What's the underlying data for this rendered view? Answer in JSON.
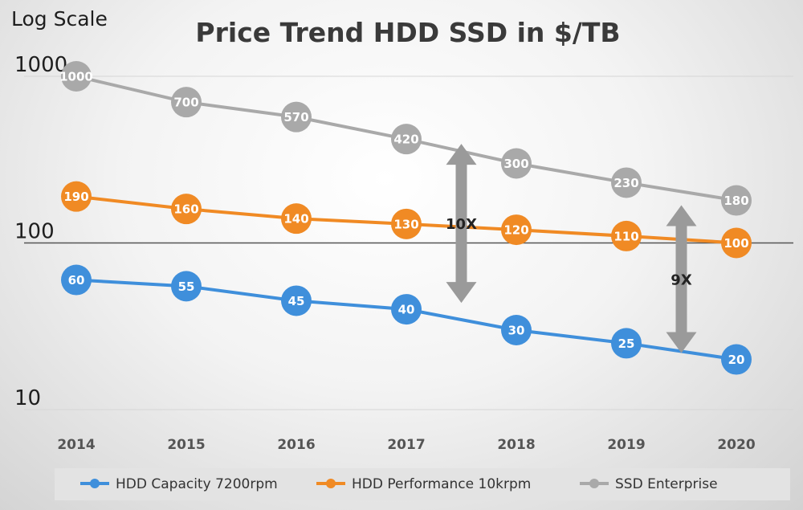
{
  "chart_data": {
    "type": "line",
    "title": "Price Trend HDD SSD in $/TB",
    "y_scale_label": "Log Scale",
    "y_scale": "log",
    "ylim": [
      10,
      1000
    ],
    "y_ticks": [
      "1000",
      "100",
      "10"
    ],
    "categories": [
      "2014",
      "2015",
      "2016",
      "2017",
      "2018",
      "2019",
      "2020"
    ],
    "grid": "horizontal",
    "legend_position": "bottom",
    "series": [
      {
        "name": "HDD Capacity 7200rpm",
        "color": "#3f8fdb",
        "values": [
          60,
          55,
          45,
          40,
          30,
          25,
          20
        ]
      },
      {
        "name": "HDD Performance 10krpm",
        "color": "#f08a24",
        "values": [
          190,
          160,
          140,
          130,
          120,
          110,
          100
        ]
      },
      {
        "name": "SSD Enterprise",
        "color": "#a9a9a9",
        "values": [
          1000,
          700,
          570,
          420,
          300,
          230,
          180
        ]
      }
    ],
    "annotations": [
      {
        "text": "10X",
        "x": "2017",
        "from": 40,
        "to": 420
      },
      {
        "text": "9X",
        "x": "2019",
        "from": 20,
        "to": 180
      }
    ]
  }
}
